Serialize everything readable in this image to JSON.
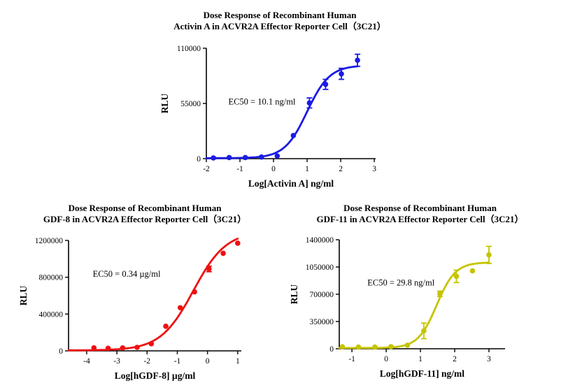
{
  "figure": {
    "background": "#ffffff",
    "text_color": "#000000"
  },
  "chart_data": [
    {
      "type": "scatter",
      "title_lines": [
        "Dose Response of Recombinant Human",
        "Activin A in ACVR2A Effector Reporter Cell（3C21）"
      ],
      "xlabel": "Log[Activin A] ng/ml",
      "ylabel": "RLU",
      "annotation": "EC50 = 10.1 ng/ml",
      "color": "#1b1be4",
      "xlim": [
        -2,
        3.04
      ],
      "ylim": [
        0,
        110000
      ],
      "xticks": [
        [
          -2,
          "-2"
        ],
        [
          -1,
          "-1"
        ],
        [
          0,
          "0"
        ],
        [
          1,
          "1"
        ],
        [
          2,
          "2"
        ],
        [
          3,
          "3"
        ]
      ],
      "yticks": [
        [
          0,
          "0"
        ],
        [
          55000,
          "55000"
        ],
        [
          110000,
          "110000"
        ]
      ],
      "points": {
        "x": [
          -1.79,
          -1.32,
          -0.84,
          -0.36,
          0.11,
          0.59,
          1.07,
          1.55,
          2.02,
          2.5
        ],
        "y": [
          700,
          1100,
          1100,
          1600,
          2700,
          23000,
          55500,
          74000,
          84500,
          98000
        ],
        "err": [
          0,
          0,
          0,
          0,
          0,
          0,
          5000,
          5000,
          5500,
          6000
        ]
      },
      "curve": {
        "model": "4PL",
        "bottom": 500,
        "top": 93000,
        "logec50": 1.0,
        "hill": 1.3,
        "xrange": [
          -2,
          2.5
        ]
      },
      "annotation_pos": {
        "x_frac": 0.13,
        "y_frac": 0.51
      },
      "grid": false,
      "legend": "none"
    },
    {
      "type": "scatter",
      "title_lines": [
        "Dose Response of Recombinant Human",
        "GDF-8 in ACVR2A Effector Reporter Cell（3C21）"
      ],
      "xlabel": "Log[hGDF-8] µg/ml",
      "ylabel": "RLU",
      "annotation": "EC50 = 0.34 µg/ml",
      "color": "#ee1111",
      "xlim": [
        -4.6,
        1.12
      ],
      "ylim": [
        0,
        1200000
      ],
      "xticks": [
        [
          -4,
          "-4"
        ],
        [
          -3,
          "-3"
        ],
        [
          -2,
          "-2"
        ],
        [
          -1,
          "-1"
        ],
        [
          0,
          "0"
        ],
        [
          1,
          "1"
        ]
      ],
      "yticks": [
        [
          0,
          "0"
        ],
        [
          400000,
          "400000"
        ],
        [
          800000,
          "800000"
        ],
        [
          1200000,
          "1200000"
        ]
      ],
      "points": {
        "x": [
          -3.76,
          -3.29,
          -2.81,
          -2.33,
          -1.86,
          -1.38,
          -0.9,
          -0.43,
          0.05,
          0.52,
          1.0
        ],
        "y": [
          33000,
          28000,
          32000,
          38000,
          77000,
          267000,
          469000,
          641000,
          890000,
          1060000,
          1170000
        ],
        "err": [
          0,
          0,
          0,
          0,
          0,
          0,
          0,
          0,
          30000,
          0,
          0
        ]
      },
      "curve": {
        "model": "4PL",
        "bottom": 5000,
        "top": 1300000,
        "logec50": -0.47,
        "hill": 0.8,
        "xrange": [
          -4.6,
          1.0
        ]
      },
      "annotation_pos": {
        "x_frac": 0.14,
        "y_frac": 0.33
      },
      "grid": false,
      "legend": "none"
    },
    {
      "type": "scatter",
      "title_lines": [
        "Dose Response of Recombinant Human",
        "GDF-11 in ACVR2A Effector Reporter Cell（3C21）"
      ],
      "xlabel": "Log[hGDF-11] ng/ml",
      "ylabel": "RLU",
      "annotation": "EC50 = 29.8 ng/ml",
      "color": "#c5c400",
      "xlim": [
        -1.37,
        3.47
      ],
      "ylim": [
        0,
        1400000
      ],
      "xticks": [
        [
          -1,
          "-1"
        ],
        [
          0,
          "0"
        ],
        [
          1,
          "1"
        ],
        [
          2,
          "2"
        ],
        [
          3,
          "3"
        ]
      ],
      "yticks": [
        [
          0,
          "0"
        ],
        [
          350000,
          "350000"
        ],
        [
          700000,
          "700000"
        ],
        [
          1050000,
          "1050000"
        ],
        [
          1400000,
          "1400000"
        ]
      ],
      "points": {
        "x": [
          -1.28,
          -0.81,
          -0.33,
          0.14,
          0.62,
          1.1,
          1.57,
          2.05,
          2.52,
          3.0
        ],
        "y": [
          25000,
          22000,
          22000,
          27000,
          45000,
          230000,
          706000,
          930000,
          1000000,
          1205000
        ],
        "err": [
          0,
          0,
          0,
          0,
          0,
          100000,
          35000,
          80000,
          0,
          110000
        ]
      },
      "curve": {
        "model": "4PL",
        "bottom": 10000,
        "top": 1110000,
        "logec50": 1.474,
        "hill": 1.6,
        "xrange": [
          -1.37,
          3.0
        ]
      },
      "annotation_pos": {
        "x_frac": 0.17,
        "y_frac": 0.42
      },
      "grid": false,
      "legend": "none"
    }
  ]
}
